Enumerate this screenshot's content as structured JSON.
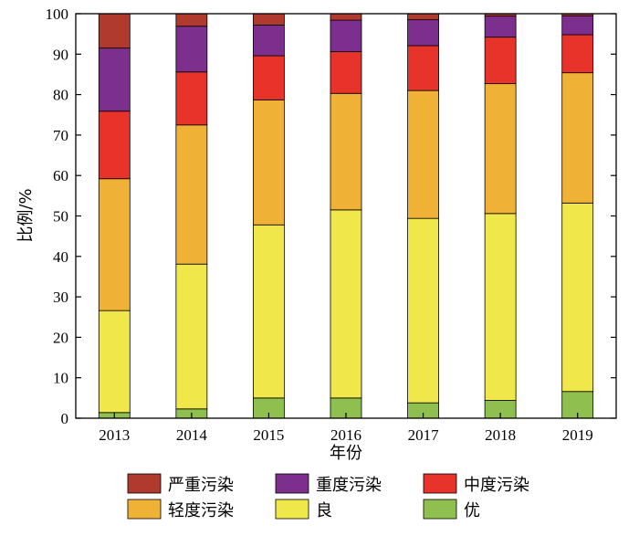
{
  "chart_data": {
    "type": "bar",
    "stacked": true,
    "xlabel": "年份",
    "ylabel": "比例/%",
    "ylim": [
      0,
      100
    ],
    "yticks": [
      0,
      10,
      20,
      30,
      40,
      50,
      60,
      70,
      80,
      90,
      100
    ],
    "categories": [
      "2013",
      "2014",
      "2015",
      "2016",
      "2017",
      "2018",
      "2019"
    ],
    "series": [
      {
        "name": "优",
        "color": "#8fbf4f",
        "values": [
          1.4,
          2.3,
          5.0,
          5.0,
          3.8,
          4.4,
          6.6
        ]
      },
      {
        "name": "良",
        "color": "#f0e84a",
        "values": [
          25.2,
          35.8,
          42.8,
          46.5,
          45.6,
          46.2,
          46.6
        ]
      },
      {
        "name": "轻度污染",
        "color": "#f0b236",
        "values": [
          32.6,
          34.4,
          30.9,
          28.8,
          31.6,
          32.1,
          32.2
        ]
      },
      {
        "name": "中度污染",
        "color": "#e8332b",
        "values": [
          16.7,
          13.1,
          10.9,
          10.3,
          11.1,
          11.5,
          9.4
        ]
      },
      {
        "name": "重度污染",
        "color": "#7c2f8c",
        "values": [
          15.6,
          11.3,
          7.6,
          7.8,
          6.4,
          5.2,
          4.7
        ]
      },
      {
        "name": "严重污染",
        "color": "#b03a2e",
        "values": [
          8.5,
          3.1,
          2.8,
          1.6,
          1.5,
          0.6,
          0.5
        ]
      }
    ],
    "legend": {
      "position": "bottom",
      "order": [
        "严重污染",
        "重度污染",
        "中度污染",
        "轻度污染",
        "良",
        "优"
      ]
    },
    "grid": false
  }
}
